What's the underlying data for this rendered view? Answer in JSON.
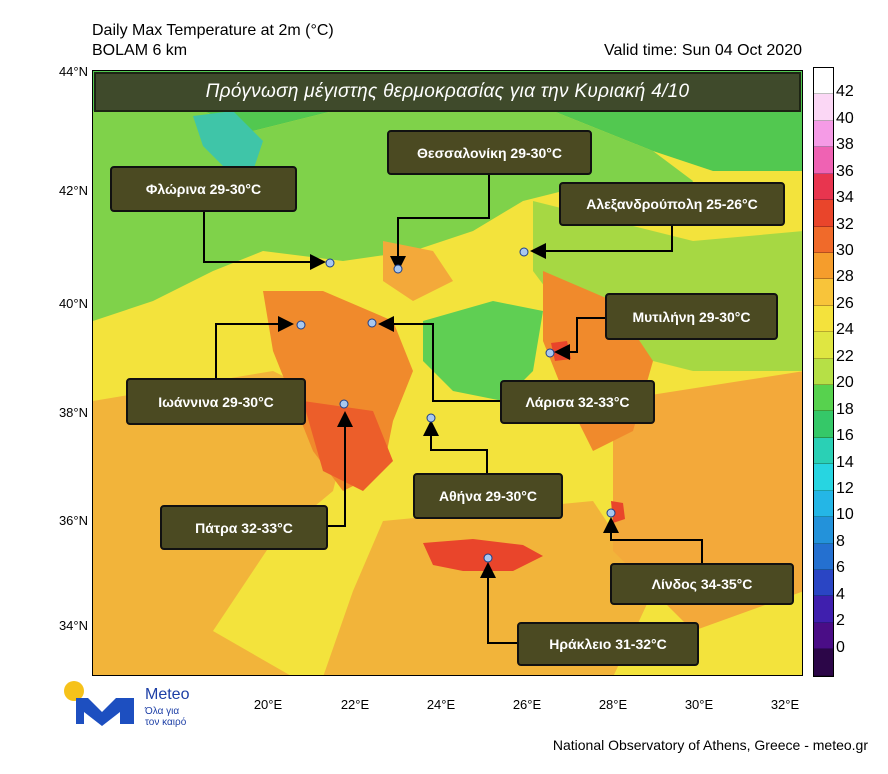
{
  "header": {
    "title": "Daily Max Temperature at 2m (°C)",
    "model": "BOLAM 6 km",
    "valid_time": "Valid time: Sun 04 Oct 2020"
  },
  "banner": "Πρόγνωση μέγιστης θερμοκρασίας για την Κυριακή 4/10",
  "axes": {
    "lat_labels": [
      "44°N",
      "42°N",
      "40°N",
      "38°N",
      "36°N",
      "34°N"
    ],
    "lon_labels": [
      "20°E",
      "22°E",
      "24°E",
      "26°E",
      "28°E",
      "30°E",
      "32°E"
    ]
  },
  "cities": [
    {
      "label": "Θεσσαλονίκη 29-30°C"
    },
    {
      "label": "Φλώρινα 29-30°C"
    },
    {
      "label": "Αλεξανδρούπολη 25-26°C"
    },
    {
      "label": "Μυτιλήνη 29-30°C"
    },
    {
      "label": "Ιωάννινα 29-30°C"
    },
    {
      "label": "Λάρισα 32-33°C"
    },
    {
      "label": "Αθήνα 29-30°C"
    },
    {
      "label": "Πάτρα 32-33°C"
    },
    {
      "label": "Λίνδος 34-35°C"
    },
    {
      "label": "Ηράκλειο 31-32°C"
    }
  ],
  "colorbar": {
    "labels": [
      "42",
      "40",
      "38",
      "36",
      "34",
      "32",
      "30",
      "28",
      "26",
      "24",
      "22",
      "20",
      "18",
      "16",
      "14",
      "12",
      "10",
      "8",
      "6",
      "4",
      "2",
      "0"
    ],
    "colors": [
      "#ffffff",
      "#fbd7f5",
      "#f59be6",
      "#ef62b3",
      "#e8354f",
      "#e9452b",
      "#f06a2a",
      "#f59d2c",
      "#f8c43a",
      "#f4e23c",
      "#dfe641",
      "#b6e046",
      "#57d24e",
      "#35c868",
      "#2ad0b5",
      "#27d5e1",
      "#24b6e6",
      "#2392da",
      "#2470d0",
      "#2a45c4",
      "#3f1fae",
      "#4a0d86",
      "#2c0648"
    ]
  },
  "logo": {
    "name": "Meteo",
    "tagline_1": "Όλα για",
    "tagline_2": "τον καιρό"
  },
  "footer": "National Observatory of Athens, Greece - meteo.gr"
}
